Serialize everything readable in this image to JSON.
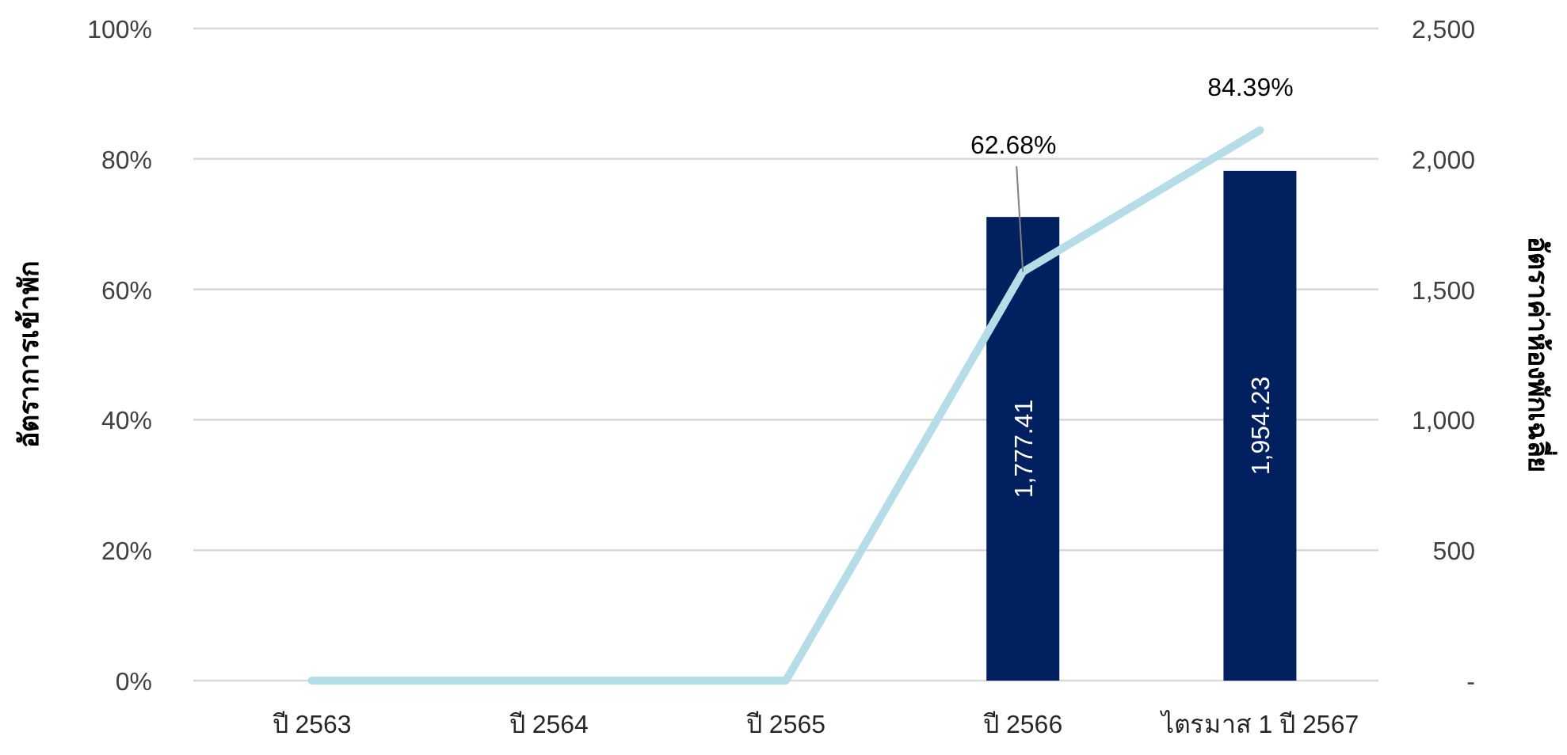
{
  "chart_data": {
    "type": "bar",
    "ylabel": "อัตราการเข้าพัก",
    "y2label": "อัตราค่าห้องพักเฉลี่ย",
    "categories": [
      "ปี 2563",
      "ปี 2564",
      "ปี 2565",
      "ปี 2566",
      "ไตรมาส 1 ปี 2567"
    ],
    "ylim": [
      0,
      100
    ],
    "yticks": [
      {
        "value": 0,
        "label": "0%"
      },
      {
        "value": 20,
        "label": "20%"
      },
      {
        "value": 40,
        "label": "40%"
      },
      {
        "value": 60,
        "label": "60%"
      },
      {
        "value": 80,
        "label": "80%"
      },
      {
        "value": 100,
        "label": "100%"
      }
    ],
    "y2lim": [
      0,
      2500
    ],
    "y2ticks": [
      {
        "value": 0,
        "label": "-"
      },
      500,
      {
        "value": 1000,
        "label": "1,000"
      },
      {
        "value": 1500,
        "label": "1,500"
      },
      {
        "value": 2000,
        "label": "2,000"
      },
      {
        "value": 2500,
        "label": "2,500"
      }
    ],
    "grid": "y",
    "series": [
      {
        "axis": "y2",
        "color": "#002060",
        "values": [
          null,
          null,
          null,
          1777.41,
          1954.23
        ],
        "value_labels": [
          null,
          null,
          null,
          "1,777.41",
          "1,954.23"
        ]
      },
      {
        "type": "line",
        "axis": "y",
        "color": "#b4dde8",
        "values": [
          0,
          0,
          0,
          62.68,
          84.39
        ],
        "value_labels": [
          null,
          null,
          null,
          "62.68%",
          "84.39%"
        ]
      }
    ]
  }
}
